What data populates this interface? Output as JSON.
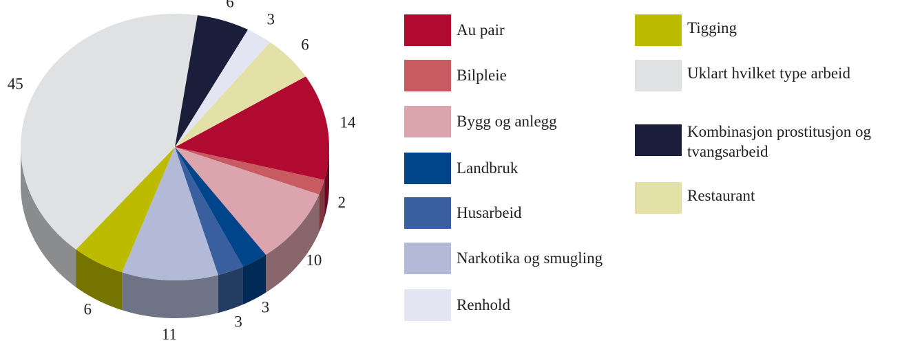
{
  "chart_data": {
    "type": "pie3d",
    "categories": [
      "Au pair",
      "Bilpleie",
      "Bygg og anlegg",
      "Landbruk",
      "Husarbeid",
      "Narkotika og smugling",
      "Tigging",
      "Uklart hvilket type arbeid",
      "Kombinasjon prostitusjon og tvangsarbeid",
      "Renhold",
      "Restaurant"
    ],
    "values": [
      14,
      2,
      10,
      3,
      3,
      11,
      6,
      45,
      6,
      3,
      6
    ],
    "colors": [
      "#b00a30",
      "#c85a62",
      "#dca4ad",
      "#00458a",
      "#3a5f9e",
      "#b3bad8",
      "#bcbb00",
      "#e0e1e3",
      "#1a1e3a",
      "#e3e5f2",
      "#e3e1a8"
    ],
    "legend": "right"
  }
}
